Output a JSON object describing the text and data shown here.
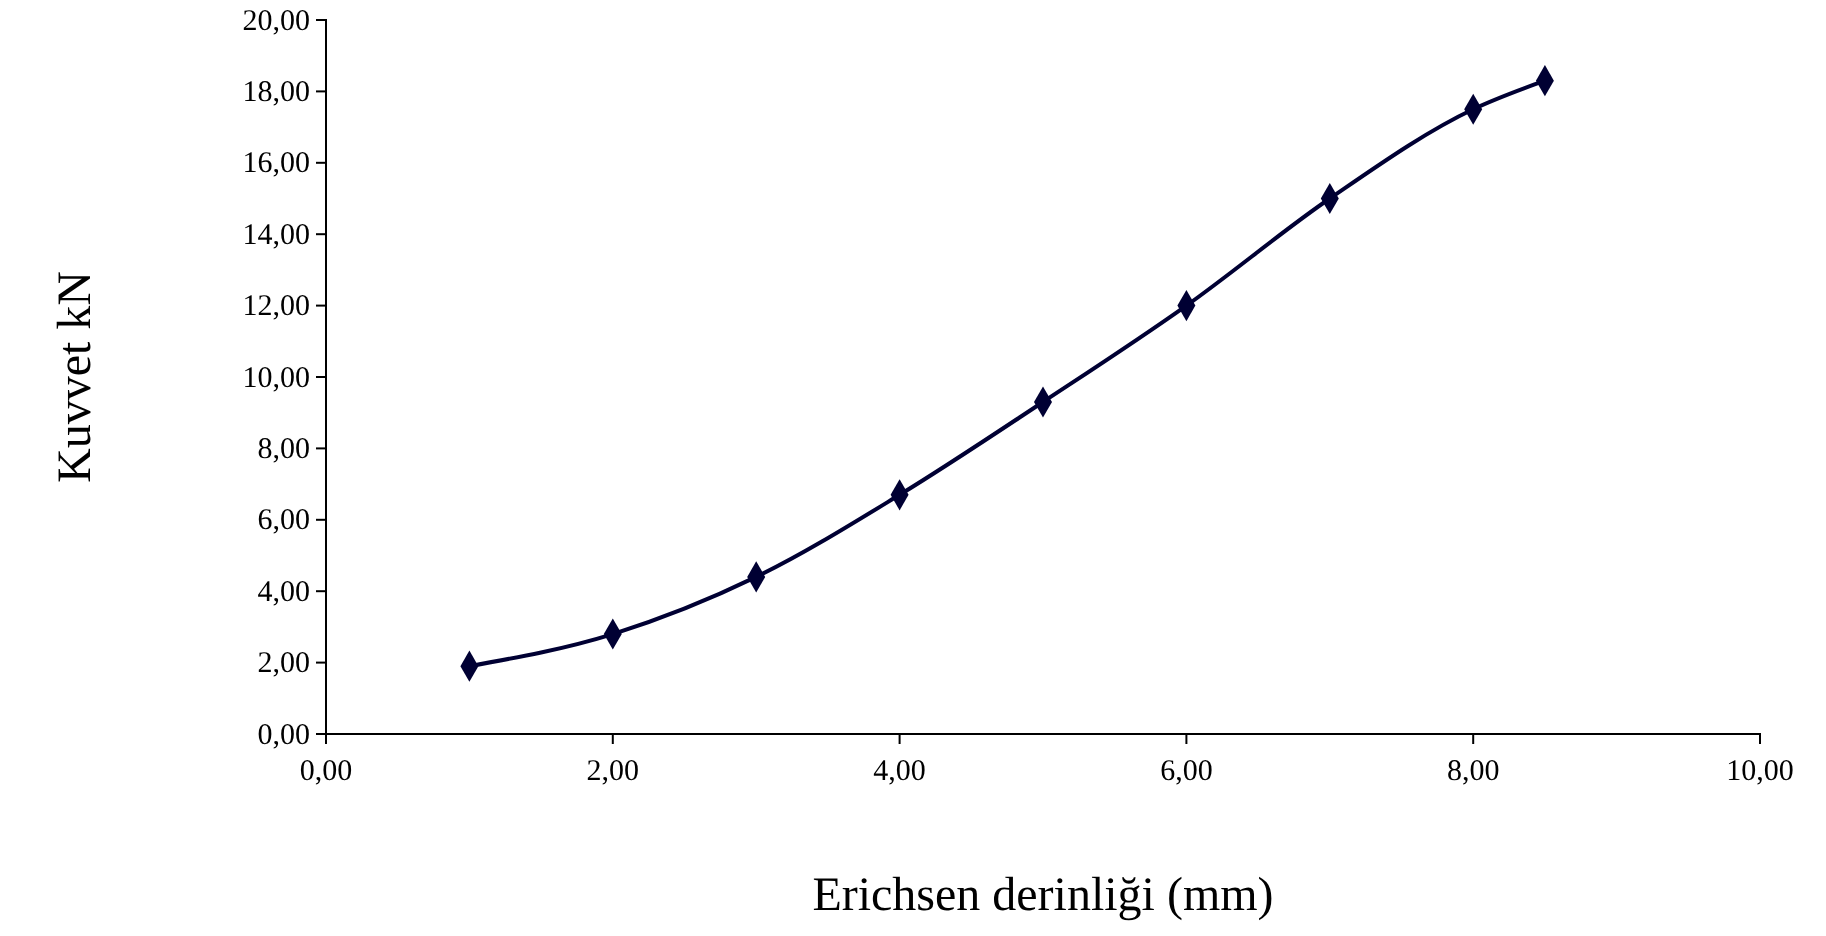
{
  "chart_data": {
    "type": "line",
    "xlabel": "Erichsen derinliği (mm)",
    "ylabel": "Kuvvet kN",
    "x": [
      1,
      2,
      3,
      4,
      5,
      6,
      7,
      8,
      8.5
    ],
    "series": [
      {
        "color": "#000033",
        "values": [
          1.9,
          2.8,
          4.4,
          6.7,
          9.3,
          12.0,
          15.0,
          17.5,
          18.3
        ]
      }
    ],
    "xlim": [
      0,
      10
    ],
    "xticks": [
      {
        "value": 0,
        "label": "0,00"
      },
      {
        "value": 2,
        "label": "2,00"
      },
      {
        "value": 4,
        "label": "4,00"
      },
      {
        "value": 6,
        "label": "6,00"
      },
      {
        "value": 8,
        "label": "8,00"
      },
      {
        "value": 10,
        "label": "10,00"
      }
    ],
    "ylim": [
      0,
      20
    ],
    "yticks": [
      {
        "value": 0,
        "label": "0,00"
      },
      {
        "value": 2,
        "label": "2,00"
      },
      {
        "value": 4,
        "label": "4,00"
      },
      {
        "value": 6,
        "label": "6,00"
      },
      {
        "value": 8,
        "label": "8,00"
      },
      {
        "value": 10,
        "label": "10,00"
      },
      {
        "value": 12,
        "label": "12,00"
      },
      {
        "value": 14,
        "label": "14,00"
      },
      {
        "value": 16,
        "label": "16,00"
      },
      {
        "value": 18,
        "label": "18,00"
      },
      {
        "value": 20,
        "label": "20,00"
      }
    ],
    "grid": false,
    "marker": "diamond",
    "line_style": "solid"
  }
}
